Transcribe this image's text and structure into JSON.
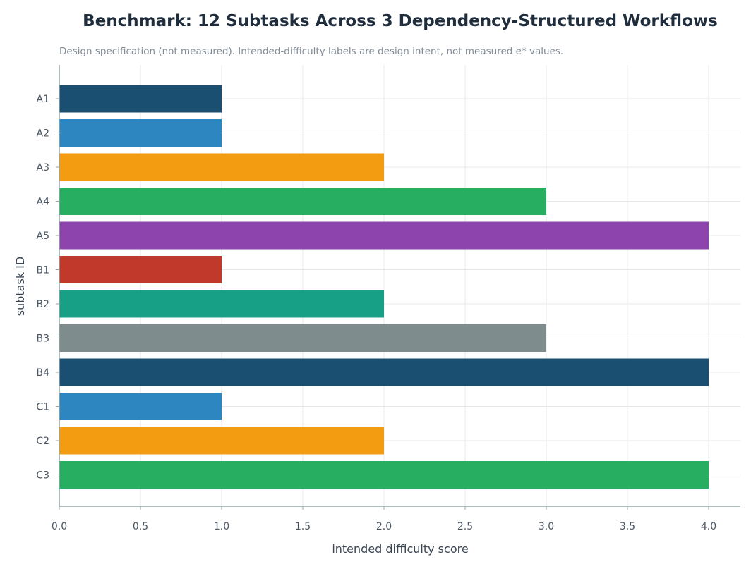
{
  "chart_data": {
    "type": "bar",
    "orientation": "horizontal",
    "title": "Benchmark: 12 Subtasks Across 3 Dependency-Structured Workflows",
    "subtitle": "Design specification (not measured). Intended-difficulty labels are design intent, not measured e* values.",
    "xlabel": "intended difficulty score",
    "ylabel": "subtask ID",
    "xlim": [
      0,
      4.2
    ],
    "xticks": [
      "0.0",
      "0.5",
      "1.0",
      "1.5",
      "2.0",
      "2.5",
      "3.0",
      "3.5",
      "4.0"
    ],
    "grid": true,
    "categories": [
      "A1",
      "A2",
      "A3",
      "A4",
      "A5",
      "B1",
      "B2",
      "B3",
      "B4",
      "C1",
      "C2",
      "C3"
    ],
    "values": [
      1,
      1,
      2,
      3,
      4,
      1,
      2,
      3,
      4,
      1,
      2,
      4
    ],
    "bar_colors": [
      "#1b4f72",
      "#2e86c1",
      "#f39c12",
      "#27ae60",
      "#8e44ad",
      "#c0392b",
      "#17a085",
      "#7f8c8d",
      "#1b4f72",
      "#2e86c1",
      "#f39c12",
      "#27ae60"
    ]
  },
  "colors": {
    "grid": "#e5e8eb",
    "axis": "#95a5a6",
    "title": "#1f2d3d",
    "subtitle": "#808b96"
  }
}
